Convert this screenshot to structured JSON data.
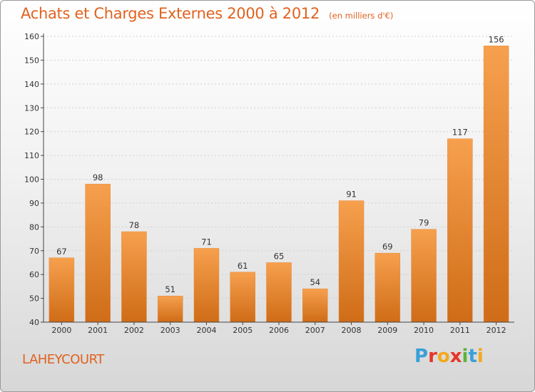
{
  "title": "Achats et Charges Externes 2000 à 2012",
  "subtitle": "(en milliers d'€)",
  "location": "LAHEYCOURT",
  "logo": {
    "text": "Proxiti",
    "letters": [
      {
        "ch": "P",
        "color": "#3aa0d8"
      },
      {
        "ch": "r",
        "color": "#e8342a"
      },
      {
        "ch": "o",
        "color": "#f4a81c"
      },
      {
        "ch": "x",
        "color": "#e8342a"
      },
      {
        "ch": "i",
        "color": "#5db33a"
      },
      {
        "ch": "t",
        "color": "#3aa0d8"
      },
      {
        "ch": "i",
        "color": "#f4a81c"
      }
    ]
  },
  "colors": {
    "title": "#e0621f",
    "bar_light": "#f6a04e",
    "bar_dark": "#cf6c17",
    "axis": "#444444",
    "grid": "#d0d0d0"
  },
  "chart_data": {
    "type": "bar",
    "categories": [
      "2000",
      "2001",
      "2002",
      "2003",
      "2004",
      "2005",
      "2006",
      "2007",
      "2008",
      "2009",
      "2010",
      "2011",
      "2012"
    ],
    "values": [
      67,
      98,
      78,
      51,
      71,
      61,
      65,
      54,
      91,
      69,
      79,
      117,
      156
    ],
    "ylim": [
      40,
      160
    ],
    "yticks": [
      40,
      50,
      60,
      70,
      80,
      90,
      100,
      110,
      120,
      130,
      140,
      150,
      160
    ],
    "grid": true,
    "title": "Achats et Charges Externes 2000 à 2012",
    "xlabel": "",
    "ylabel": ""
  }
}
